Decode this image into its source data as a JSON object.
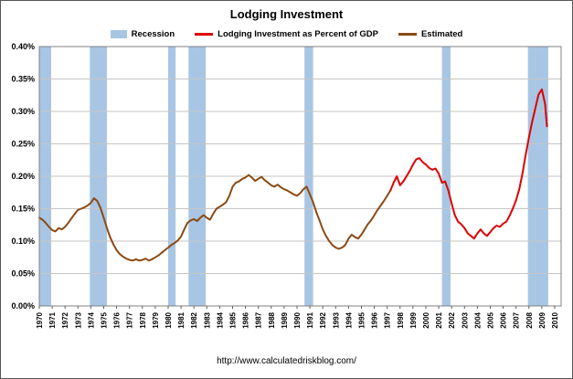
{
  "title": "Lodging Investment",
  "legend": [
    {
      "label": "Recession",
      "color": "#a8c6e4",
      "type": "band"
    },
    {
      "label": "Lodging Investment as Percent of GDP",
      "color": "#dd0000",
      "type": "line"
    },
    {
      "label": "Estimated",
      "color": "#8b4a13",
      "type": "line"
    }
  ],
  "footer": "http://www.calculatedriskblog.com/",
  "chart_data": {
    "type": "line",
    "title": "Lodging Investment",
    "xlabel": "",
    "ylabel": "",
    "x_range": [
      1970,
      2010.5
    ],
    "y_range_percent": [
      0,
      0.4
    ],
    "grid": "horizontal",
    "legend_position": "top",
    "band_color": "#a8c6e4",
    "y_ticks": [
      "0.00%",
      "0.05%",
      "0.10%",
      "0.15%",
      "0.20%",
      "0.25%",
      "0.30%",
      "0.35%",
      "0.40%"
    ],
    "x_ticks": [
      1970,
      1971,
      1972,
      1973,
      1974,
      1975,
      1976,
      1977,
      1978,
      1979,
      1980,
      1981,
      1982,
      1983,
      1984,
      1985,
      1986,
      1987,
      1988,
      1989,
      1990,
      1991,
      1992,
      1993,
      1994,
      1995,
      1996,
      1997,
      1998,
      1999,
      2000,
      2001,
      2002,
      2003,
      2004,
      2005,
      2006,
      2007,
      2008,
      2009,
      2010
    ],
    "recession_bands": [
      [
        1970,
        1970.92
      ],
      [
        1973.92,
        1975.25
      ],
      [
        1980.0,
        1980.58
      ],
      [
        1981.58,
        1982.92
      ],
      [
        1990.58,
        1991.25
      ],
      [
        2001.25,
        2001.92
      ],
      [
        2007.92,
        2009.5
      ]
    ],
    "series": [
      {
        "name": "Estimated",
        "color": "#8b4a13",
        "points": [
          [
            1970.0,
            0.136
          ],
          [
            1970.25,
            0.133
          ],
          [
            1970.5,
            0.128
          ],
          [
            1970.75,
            0.122
          ],
          [
            1971.0,
            0.117
          ],
          [
            1971.25,
            0.115
          ],
          [
            1971.5,
            0.12
          ],
          [
            1971.75,
            0.118
          ],
          [
            1972.0,
            0.122
          ],
          [
            1972.25,
            0.128
          ],
          [
            1972.5,
            0.135
          ],
          [
            1972.75,
            0.142
          ],
          [
            1973.0,
            0.148
          ],
          [
            1973.25,
            0.15
          ],
          [
            1973.5,
            0.152
          ],
          [
            1973.75,
            0.155
          ],
          [
            1974.0,
            0.159
          ],
          [
            1974.25,
            0.166
          ],
          [
            1974.5,
            0.162
          ],
          [
            1974.75,
            0.151
          ],
          [
            1975.0,
            0.136
          ],
          [
            1975.25,
            0.12
          ],
          [
            1975.5,
            0.106
          ],
          [
            1975.75,
            0.095
          ],
          [
            1976.0,
            0.086
          ],
          [
            1976.25,
            0.08
          ],
          [
            1976.5,
            0.076
          ],
          [
            1976.75,
            0.073
          ],
          [
            1977.0,
            0.071
          ],
          [
            1977.25,
            0.07
          ],
          [
            1977.5,
            0.072
          ],
          [
            1977.75,
            0.07
          ],
          [
            1978.0,
            0.071
          ],
          [
            1978.25,
            0.073
          ],
          [
            1978.5,
            0.07
          ],
          [
            1978.75,
            0.072
          ],
          [
            1979.0,
            0.075
          ],
          [
            1979.25,
            0.078
          ],
          [
            1979.5,
            0.082
          ],
          [
            1979.75,
            0.086
          ],
          [
            1980.0,
            0.09
          ],
          [
            1980.25,
            0.094
          ],
          [
            1980.5,
            0.097
          ],
          [
            1980.75,
            0.101
          ],
          [
            1981.0,
            0.107
          ],
          [
            1981.25,
            0.118
          ],
          [
            1981.5,
            0.128
          ],
          [
            1981.75,
            0.132
          ],
          [
            1982.0,
            0.134
          ],
          [
            1982.25,
            0.131
          ],
          [
            1982.5,
            0.136
          ],
          [
            1982.75,
            0.14
          ],
          [
            1983.0,
            0.136
          ],
          [
            1983.25,
            0.133
          ],
          [
            1983.5,
            0.142
          ],
          [
            1983.75,
            0.15
          ],
          [
            1984.0,
            0.153
          ],
          [
            1984.25,
            0.156
          ],
          [
            1984.5,
            0.16
          ],
          [
            1984.75,
            0.17
          ],
          [
            1985.0,
            0.184
          ],
          [
            1985.25,
            0.19
          ],
          [
            1985.5,
            0.192
          ],
          [
            1985.75,
            0.196
          ],
          [
            1986.0,
            0.198
          ],
          [
            1986.25,
            0.202
          ],
          [
            1986.5,
            0.198
          ],
          [
            1986.75,
            0.193
          ],
          [
            1987.0,
            0.196
          ],
          [
            1987.25,
            0.199
          ],
          [
            1987.5,
            0.194
          ],
          [
            1987.75,
            0.19
          ],
          [
            1988.0,
            0.186
          ],
          [
            1988.25,
            0.184
          ],
          [
            1988.5,
            0.187
          ],
          [
            1988.75,
            0.183
          ],
          [
            1989.0,
            0.18
          ],
          [
            1989.25,
            0.178
          ],
          [
            1989.5,
            0.175
          ],
          [
            1989.75,
            0.172
          ],
          [
            1990.0,
            0.17
          ],
          [
            1990.25,
            0.174
          ],
          [
            1990.5,
            0.18
          ],
          [
            1990.75,
            0.184
          ],
          [
            1991.0,
            0.172
          ],
          [
            1991.25,
            0.16
          ],
          [
            1991.5,
            0.145
          ],
          [
            1991.75,
            0.132
          ],
          [
            1992.0,
            0.118
          ],
          [
            1992.25,
            0.108
          ],
          [
            1992.5,
            0.1
          ],
          [
            1992.75,
            0.094
          ],
          [
            1993.0,
            0.09
          ],
          [
            1993.25,
            0.088
          ],
          [
            1993.5,
            0.09
          ],
          [
            1993.75,
            0.094
          ],
          [
            1994.0,
            0.104
          ],
          [
            1994.25,
            0.11
          ],
          [
            1994.5,
            0.106
          ],
          [
            1994.75,
            0.104
          ],
          [
            1995.0,
            0.11
          ],
          [
            1995.25,
            0.118
          ],
          [
            1995.5,
            0.126
          ],
          [
            1995.75,
            0.132
          ],
          [
            1996.0,
            0.14
          ],
          [
            1996.25,
            0.148
          ],
          [
            1996.5,
            0.155
          ],
          [
            1996.75,
            0.162
          ],
          [
            1997.0,
            0.17
          ],
          [
            1997.25,
            0.178
          ]
        ]
      },
      {
        "name": "Lodging Investment as Percent of GDP",
        "color": "#dd0000",
        "points": [
          [
            1997.25,
            0.178
          ],
          [
            1997.5,
            0.19
          ],
          [
            1997.75,
            0.2
          ],
          [
            1998.0,
            0.186
          ],
          [
            1998.25,
            0.192
          ],
          [
            1998.5,
            0.2
          ],
          [
            1998.75,
            0.208
          ],
          [
            1999.0,
            0.218
          ],
          [
            1999.25,
            0.226
          ],
          [
            1999.5,
            0.228
          ],
          [
            1999.75,
            0.222
          ],
          [
            2000.0,
            0.218
          ],
          [
            2000.25,
            0.213
          ],
          [
            2000.5,
            0.21
          ],
          [
            2000.75,
            0.212
          ],
          [
            2001.0,
            0.204
          ],
          [
            2001.25,
            0.19
          ],
          [
            2001.5,
            0.192
          ],
          [
            2001.75,
            0.178
          ],
          [
            2002.0,
            0.158
          ],
          [
            2002.25,
            0.14
          ],
          [
            2002.5,
            0.13
          ],
          [
            2002.75,
            0.126
          ],
          [
            2003.0,
            0.12
          ],
          [
            2003.25,
            0.112
          ],
          [
            2003.5,
            0.108
          ],
          [
            2003.75,
            0.104
          ],
          [
            2004.0,
            0.112
          ],
          [
            2004.25,
            0.118
          ],
          [
            2004.5,
            0.112
          ],
          [
            2004.75,
            0.108
          ],
          [
            2005.0,
            0.114
          ],
          [
            2005.25,
            0.12
          ],
          [
            2005.5,
            0.124
          ],
          [
            2005.75,
            0.122
          ],
          [
            2006.0,
            0.127
          ],
          [
            2006.25,
            0.13
          ],
          [
            2006.5,
            0.139
          ],
          [
            2006.75,
            0.15
          ],
          [
            2007.0,
            0.163
          ],
          [
            2007.25,
            0.18
          ],
          [
            2007.5,
            0.204
          ],
          [
            2007.75,
            0.233
          ],
          [
            2008.0,
            0.26
          ],
          [
            2008.25,
            0.284
          ],
          [
            2008.5,
            0.305
          ],
          [
            2008.75,
            0.326
          ],
          [
            2009.0,
            0.334
          ],
          [
            2009.25,
            0.312
          ],
          [
            2009.4,
            0.277
          ]
        ]
      }
    ]
  }
}
